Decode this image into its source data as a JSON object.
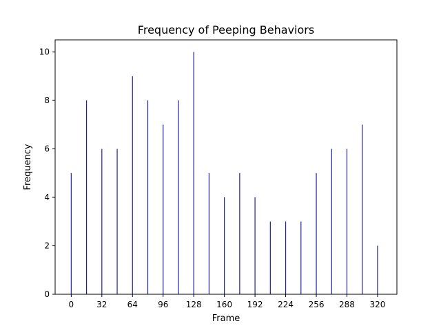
{
  "chart_data": {
    "type": "bar",
    "title": "Frequency of Peeping Behaviors",
    "xlabel": "Frame",
    "ylabel": "Frequency",
    "x": [
      0,
      16,
      32,
      48,
      64,
      80,
      96,
      112,
      128,
      144,
      160,
      176,
      192,
      208,
      224,
      240,
      256,
      272,
      288,
      304,
      320
    ],
    "values": [
      5,
      8,
      6,
      6,
      9,
      8,
      7,
      8,
      10,
      5,
      4,
      5,
      4,
      3,
      3,
      3,
      5,
      6,
      6,
      7,
      2
    ],
    "xticks": [
      0,
      32,
      64,
      96,
      128,
      160,
      192,
      224,
      256,
      288,
      320
    ],
    "yticks": [
      0,
      2,
      4,
      6,
      8,
      10
    ],
    "xlim": [
      -16.8,
      340.2
    ],
    "ylim": [
      0,
      10.5
    ],
    "grid": false,
    "bar_color": "#1f1fa0"
  }
}
